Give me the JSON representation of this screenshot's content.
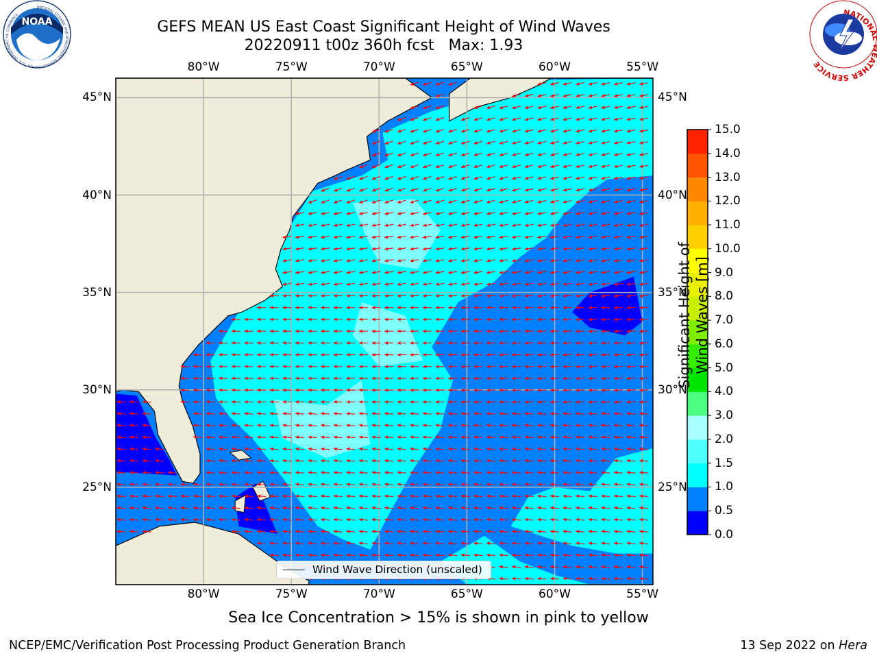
{
  "header": {
    "title_line1": "GEFS MEAN US East Coast Significant Height of Wind Waves",
    "title_line2": "20220911 t00z 360h fcst   Max: 1.93"
  },
  "logos": {
    "left": {
      "text": "NOAA",
      "ring_text": "NATIONAL OCEANIC AND ATMOSPHERIC ADMINISTRATION · U.S. DEPARTMENT OF COMMERCE"
    },
    "right": {
      "ring_text": "NATIONAL WEATHER SERVICE"
    }
  },
  "map": {
    "lon_labels": [
      "80°W",
      "75°W",
      "70°W",
      "65°W",
      "60°W",
      "55°W"
    ],
    "lat_labels": [
      "45°N",
      "40°N",
      "35°N",
      "30°N",
      "25°N"
    ],
    "lon_range": [
      -85,
      -54.4
    ],
    "lat_range": [
      20,
      46
    ],
    "gridlines": true,
    "colors": {
      "land": "#efedda",
      "band_0_0_5": "#0000ff",
      "band_0_5_1_0": "#0080ff",
      "band_1_0_1_5": "#00ffff",
      "band_1_5_2_0": "#80ffff",
      "band_2_0_3_0": "#b4ffff",
      "arrow": "#ff0000",
      "coast": "#000000",
      "grid": "#b0b0b0"
    },
    "legend": {
      "text": "Wind Wave Direction (unscaled)"
    }
  },
  "colorbar": {
    "label": "Significant Height of Wind Waves [m]",
    "tick_labels": [
      "15.0",
      "14.0",
      "13.0",
      "12.0",
      "11.0",
      "10.0",
      "9.0",
      "8.0",
      "7.0",
      "6.0",
      "5.0",
      "4.0",
      "3.0",
      "2.0",
      "1.5",
      "1.0",
      "0.5",
      "0.0"
    ],
    "levels": [
      0.0,
      0.5,
      1.0,
      1.5,
      2.0,
      3.0,
      4.0,
      5.0,
      6.0,
      7.0,
      8.0,
      9.0,
      10.0,
      11.0,
      12.0,
      13.0,
      14.0,
      15.0
    ],
    "colors": [
      "#0000ff",
      "#0080ff",
      "#00ffff",
      "#4dffff",
      "#a8ffff",
      "#4dff80",
      "#00e600",
      "#33ee00",
      "#80ee00",
      "#c8ee00",
      "#e8f000",
      "#ffff00",
      "#ffd000",
      "#ffb000",
      "#ff8800",
      "#ff5500",
      "#ff2200"
    ]
  },
  "notes": {
    "sea_ice": "Sea Ice Concentration > 15% is shown in pink to yellow"
  },
  "footer": {
    "left": "NCEP/EMC/Verification Post Processing Product Generation Branch",
    "date": "13 Sep 2022 on ",
    "machine": "Hera"
  }
}
